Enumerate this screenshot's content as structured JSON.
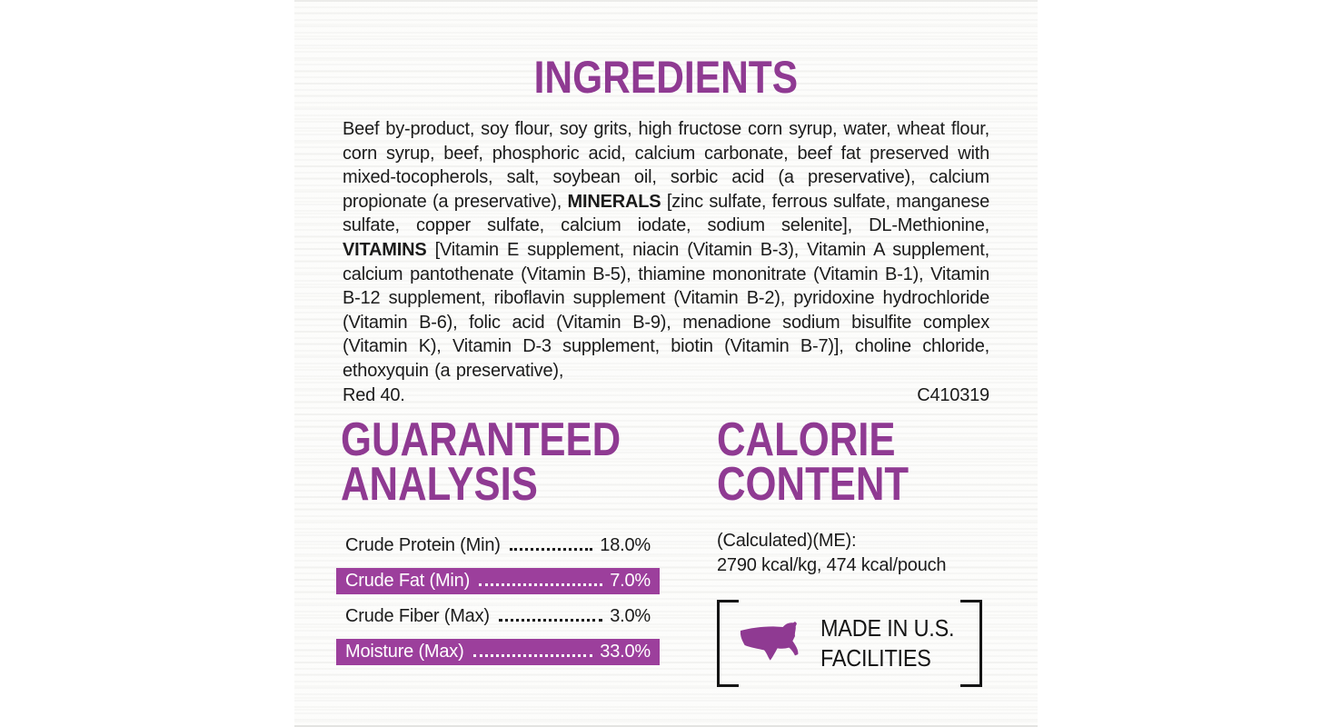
{
  "label": {
    "colors": {
      "accent_purple": "#8f3a92",
      "bar_purple": "#9c3f9c",
      "text_dark": "#1b1b1b"
    },
    "ingredients": {
      "title": "INGREDIENTS",
      "part1": "Beef by-product, soy flour, soy grits, high fructose corn syrup, water, wheat flour, corn syrup, beef, phosphoric acid, calcium carbonate, beef fat preserved with mixed-tocopherols, salt, soybean oil, sorbic acid (a preservative), calcium propionate (a preservative), ",
      "minerals_label": "MINERALS",
      "part2": " [zinc sulfate, ferrous sulfate, manganese sulfate, copper sulfate, calcium iodate, sodium selenite], DL-Methionine, ",
      "vitamins_label": "VITAMINS",
      "part3": " [Vitamin E supplement, niacin (Vitamin B-3), Vitamin A supplement, calcium pantothenate (Vitamin B-5), thiamine mononitrate (Vitamin B-1), Vitamin B-12 supplement, riboflavin supplement (Vitamin B-2), pyridoxine hydrochloride (Vitamin B-6), folic acid (Vitamin B-9), menadione sodium bisulfite complex (Vitamin K), Vitamin D-3 supplement, biotin (Vitamin B-7)], choline chloride, ethoxyquin (a preservative),",
      "last_line": "Red 40.",
      "code": "C410319"
    },
    "guaranteed_analysis": {
      "title_line1": "GUARANTEED",
      "title_line2": "ANALYSIS",
      "rows": [
        {
          "label": "Crude Protein (Min)",
          "value": "18.0%",
          "highlighted": false
        },
        {
          "label": "Crude Fat (Min)",
          "value": "7.0%",
          "highlighted": true
        },
        {
          "label": "Crude Fiber (Max)",
          "value": "3.0%",
          "highlighted": false
        },
        {
          "label": "Moisture (Max)",
          "value": "33.0%",
          "highlighted": true
        }
      ]
    },
    "calorie_content": {
      "title_line1": "CALORIE",
      "title_line2": "CONTENT",
      "calculated_label": "(Calculated)(ME):",
      "values": "2790 kcal/kg, 474 kcal/pouch",
      "made_in": {
        "line1": "MADE IN U.S.",
        "line2": "FACILITIES"
      }
    }
  }
}
